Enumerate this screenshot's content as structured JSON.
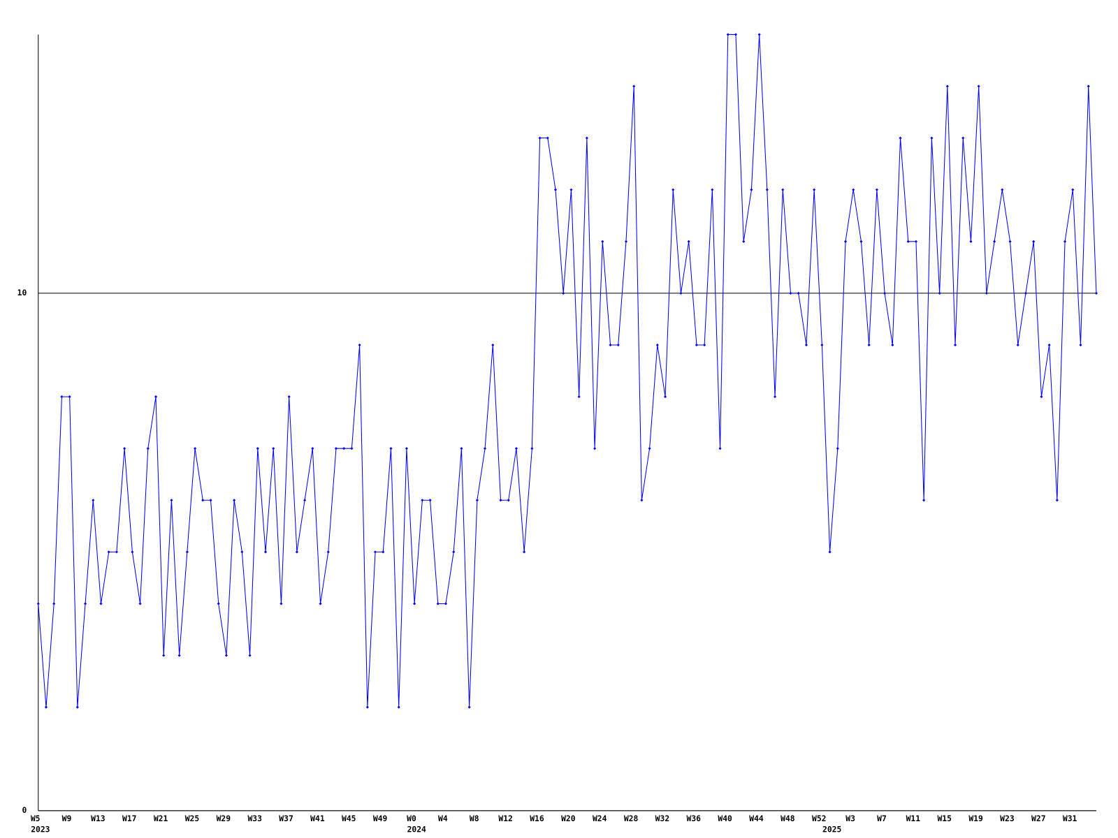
{
  "chart_data": {
    "type": "line",
    "categories": [
      "W5",
      null,
      null,
      null,
      "W9",
      null,
      null,
      null,
      "W13",
      null,
      null,
      null,
      "W17",
      null,
      null,
      null,
      "W21",
      null,
      null,
      null,
      "W25",
      null,
      null,
      null,
      "W29",
      null,
      null,
      null,
      "W33",
      null,
      null,
      null,
      "W37",
      null,
      null,
      null,
      "W41",
      null,
      null,
      null,
      "W45",
      null,
      null,
      null,
      "W49",
      null,
      null,
      null,
      "W0",
      null,
      null,
      null,
      "W4",
      null,
      null,
      null,
      "W8",
      null,
      null,
      null,
      "W12",
      null,
      null,
      null,
      "W16",
      null,
      null,
      null,
      "W20",
      null,
      null,
      null,
      "W24",
      null,
      null,
      null,
      "W28",
      null,
      null,
      null,
      "W32",
      null,
      null,
      null,
      "W36",
      null,
      null,
      null,
      "W40",
      null,
      null,
      null,
      "W44",
      null,
      null,
      null,
      "W48",
      null,
      null,
      null,
      "W52",
      null,
      null,
      null,
      "W3",
      null,
      null,
      null,
      "W7",
      null,
      null,
      null,
      "W11",
      null,
      null,
      null,
      "W15",
      null,
      null,
      null,
      "W19",
      null,
      null,
      null,
      "W23",
      null,
      null,
      null,
      "W27",
      null,
      null,
      null,
      "W31",
      null,
      null,
      null
    ],
    "years": [
      "2023",
      null,
      null,
      null,
      null,
      null,
      null,
      null,
      null,
      null,
      null,
      null,
      null,
      null,
      null,
      null,
      null,
      null,
      null,
      null,
      null,
      null,
      null,
      null,
      null,
      null,
      null,
      null,
      null,
      null,
      null,
      null,
      null,
      null,
      null,
      null,
      null,
      null,
      null,
      null,
      null,
      null,
      null,
      null,
      null,
      null,
      null,
      null,
      "2024",
      null,
      null,
      null,
      null,
      null,
      null,
      null,
      null,
      null,
      null,
      null,
      null,
      null,
      null,
      null,
      null,
      null,
      null,
      null,
      null,
      null,
      null,
      null,
      null,
      null,
      null,
      null,
      null,
      null,
      null,
      null,
      null,
      null,
      null,
      null,
      null,
      null,
      null,
      null,
      null,
      null,
      null,
      null,
      null,
      null,
      null,
      null,
      null,
      null,
      null,
      null,
      null,
      "2025",
      null,
      null,
      null,
      null,
      null,
      null,
      null,
      null,
      null,
      null,
      null,
      null,
      null,
      null,
      null,
      null,
      null,
      null,
      null,
      null,
      null,
      null,
      null,
      null,
      null,
      null,
      null,
      null,
      null,
      null,
      null,
      null,
      null,
      null
    ],
    "series": [
      {
        "color": "#0000ff",
        "values": [
          4,
          2,
          4,
          8,
          8,
          2,
          4,
          6,
          4,
          5,
          5,
          7,
          5,
          4,
          7,
          8,
          3,
          6,
          3,
          5,
          7,
          6,
          6,
          4,
          3,
          6,
          5,
          3,
          7,
          5,
          7,
          4,
          8,
          5,
          6,
          7,
          4,
          5,
          7,
          7,
          7,
          9,
          2,
          5,
          5,
          7,
          2,
          7,
          4,
          6,
          6,
          4,
          4,
          5,
          7,
          2,
          6,
          7,
          9,
          6,
          6,
          7,
          5,
          7,
          13,
          13,
          12,
          10,
          12,
          8,
          13,
          7,
          11,
          9,
          9,
          11,
          14,
          6,
          7,
          9,
          8,
          12,
          10,
          11,
          9,
          9,
          12,
          7,
          15,
          15,
          11,
          12,
          15,
          12,
          8,
          12,
          10,
          10,
          9,
          12,
          9,
          5,
          7,
          11,
          12,
          11,
          9,
          12,
          10,
          9,
          13,
          11,
          11,
          6,
          13,
          10,
          14,
          9,
          13,
          11,
          14,
          10,
          11,
          12,
          11,
          9,
          10,
          11,
          8,
          9,
          6,
          11,
          12,
          9,
          14,
          10
        ]
      }
    ],
    "ylim": [
      0,
      15
    ],
    "yticks": [
      0,
      10
    ],
    "grid": true
  }
}
